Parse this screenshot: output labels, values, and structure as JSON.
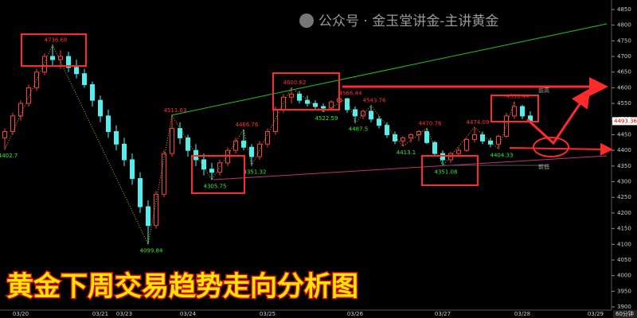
{
  "chart_data": {
    "type": "candlestick",
    "watermark": "公众号 · 金玉堂讲金-主讲黄金",
    "title": "黄金下周交易趋势走向分析图",
    "timeframe": "60分钟",
    "next_date": "03/29",
    "resistance_label": "前高",
    "support_label": "前低",
    "up_color": "#ff3b3b",
    "down_color": "#4ef0f0",
    "high_label_color": "#ff3030",
    "low_label_color": "#39e639",
    "ylim": [
      3890,
      4860
    ],
    "yticks": [
      3900,
      3950,
      4000,
      4050,
      4100,
      4150,
      4200,
      4250,
      4300,
      4350,
      4400,
      4450,
      4500,
      4550,
      4600,
      4650,
      4700,
      4750,
      4800,
      4850
    ],
    "categories": [
      null,
      null,
      "03/20",
      null,
      null,
      null,
      null,
      null,
      null,
      null,
      null,
      null,
      "03/21",
      null,
      null,
      "03/23",
      null,
      null,
      null,
      null,
      null,
      null,
      null,
      "03/24",
      null,
      null,
      null,
      null,
      null,
      null,
      null,
      null,
      null,
      "03/25",
      null,
      null,
      null,
      null,
      null,
      null,
      null,
      null,
      null,
      null,
      "03/26",
      null,
      null,
      null,
      null,
      null,
      null,
      null,
      null,
      null,
      null,
      "03/27",
      null,
      null,
      null,
      null,
      null,
      null,
      null,
      null,
      null,
      "03/28",
      null
    ],
    "open": [
      4440,
      4460,
      4510,
      4550,
      4600,
      4650,
      4700,
      4690,
      4700,
      4665,
      4645,
      4610,
      4560,
      4510,
      4460,
      4420,
      4370,
      4310,
      4220,
      4160,
      4260,
      4390,
      4470,
      4440,
      4400,
      4370,
      4340,
      4330,
      4360,
      4400,
      4430,
      4410,
      4380,
      4420,
      4460,
      4530,
      4570,
      4580,
      4560,
      4550,
      4540,
      4535,
      4555,
      4565,
      4530,
      4510,
      4525,
      4500,
      4480,
      4450,
      4430,
      4440,
      4450,
      4460,
      4425,
      4390,
      4370,
      4390,
      4400,
      4435,
      4450,
      4430,
      4420,
      4445,
      4510,
      4540,
      4510
    ],
    "high": [
      4470,
      4520,
      4560,
      4610,
      4660,
      4710,
      4736.68,
      4720,
      4715,
      4690,
      4660,
      4620,
      4575,
      4530,
      4480,
      4440,
      4390,
      4330,
      4240,
      4270,
      4400,
      4511.63,
      4490,
      4450,
      4420,
      4390,
      4360,
      4370,
      4410,
      4440,
      4466.76,
      4420,
      4430,
      4470,
      4540,
      4580,
      4600.82,
      4590,
      4575,
      4560,
      4550,
      4560,
      4575,
      4566.44,
      4540,
      4530,
      4543.76,
      4510,
      4490,
      4460,
      4445,
      4455,
      4465,
      4470.76,
      4430,
      4400,
      4395,
      4410,
      4440,
      4474.09,
      4460,
      4440,
      4450,
      4520,
      4556.44,
      4545,
      4525
    ],
    "low": [
      4402.7,
      4450,
      4495,
      4540,
      4590,
      4640,
      4670,
      4660,
      4650,
      4630,
      4600,
      4540,
      4490,
      4440,
      4400,
      4350,
      4290,
      4200,
      4099.84,
      4150,
      4250,
      4380,
      4420,
      4380,
      4350,
      4320,
      4305.75,
      4320,
      4350,
      4390,
      4400,
      4351.32,
      4370,
      4410,
      4450,
      4520,
      4550,
      4550,
      4540,
      4530,
      4522.59,
      4530,
      4545,
      4520,
      4487.5,
      4500,
      4490,
      4470,
      4440,
      4420,
      4413.1,
      4425,
      4430,
      4420,
      4380,
      4351.08,
      4360,
      4380,
      4395,
      4425,
      4420,
      4410,
      4404.33,
      4440,
      4500,
      4500,
      4485
    ],
    "close": [
      4460,
      4510,
      4550,
      4600,
      4650,
      4700,
      4690,
      4700,
      4665,
      4645,
      4610,
      4560,
      4510,
      4460,
      4420,
      4370,
      4310,
      4220,
      4160,
      4260,
      4390,
      4470,
      4440,
      4400,
      4370,
      4340,
      4330,
      4360,
      4400,
      4430,
      4410,
      4380,
      4420,
      4460,
      4530,
      4570,
      4580,
      4560,
      4550,
      4540,
      4535,
      4555,
      4565,
      4530,
      4510,
      4525,
      4500,
      4480,
      4450,
      4430,
      4440,
      4450,
      4460,
      4425,
      4390,
      4370,
      4390,
      4400,
      4435,
      4450,
      4430,
      4420,
      4445,
      4510,
      4540,
      4510,
      4493.36
    ],
    "price_labels": [
      4402.7,
      4736.68,
      4099.84,
      4511.63,
      4305.75,
      4466.76,
      4351.32,
      4600.82,
      4522.59,
      4566.44,
      4487.5,
      4543.76,
      4413.1,
      4470.76,
      4351.08,
      4474.09,
      4404.33,
      4556.44
    ]
  }
}
